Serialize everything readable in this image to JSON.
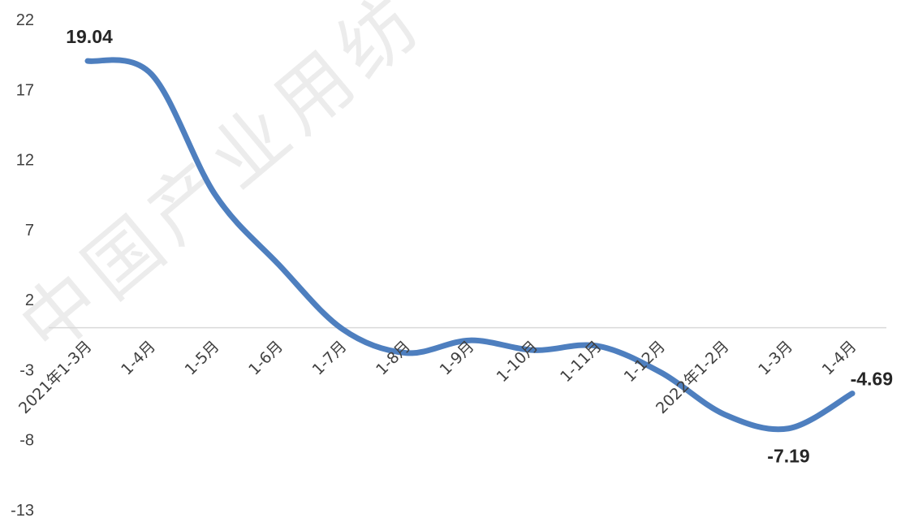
{
  "chart_data": {
    "type": "line",
    "title": "",
    "xlabel": "",
    "ylabel": "",
    "categories": [
      "2021年1-3月",
      "1-4月",
      "1-5月",
      "1-6月",
      "1-7月",
      "1-8月",
      "1-9月",
      "1-10月",
      "1-11月",
      "1-12月",
      "2022年1-2月",
      "1-3月",
      "1-4月"
    ],
    "series": [
      {
        "values": [
          19.04,
          18.1,
          9.5,
          4.5,
          -0.1,
          -1.8,
          -0.9,
          -1.6,
          -1.3,
          -3.2,
          -6.2,
          -7.19,
          -4.69
        ],
        "color": "#4e7fbf"
      }
    ],
    "data_labels": [
      {
        "index": 0,
        "text": "19.04"
      },
      {
        "index": 11,
        "text": "-7.19"
      },
      {
        "index": 12,
        "text": "-4.69"
      }
    ],
    "y_ticks": [
      "22",
      "17",
      "12",
      "7",
      "2",
      "-3",
      "-8",
      "-13"
    ],
    "ylim": [
      -13,
      22
    ],
    "grid": false,
    "legend": "none"
  },
  "watermark": {
    "text": "中国产业用纺"
  }
}
